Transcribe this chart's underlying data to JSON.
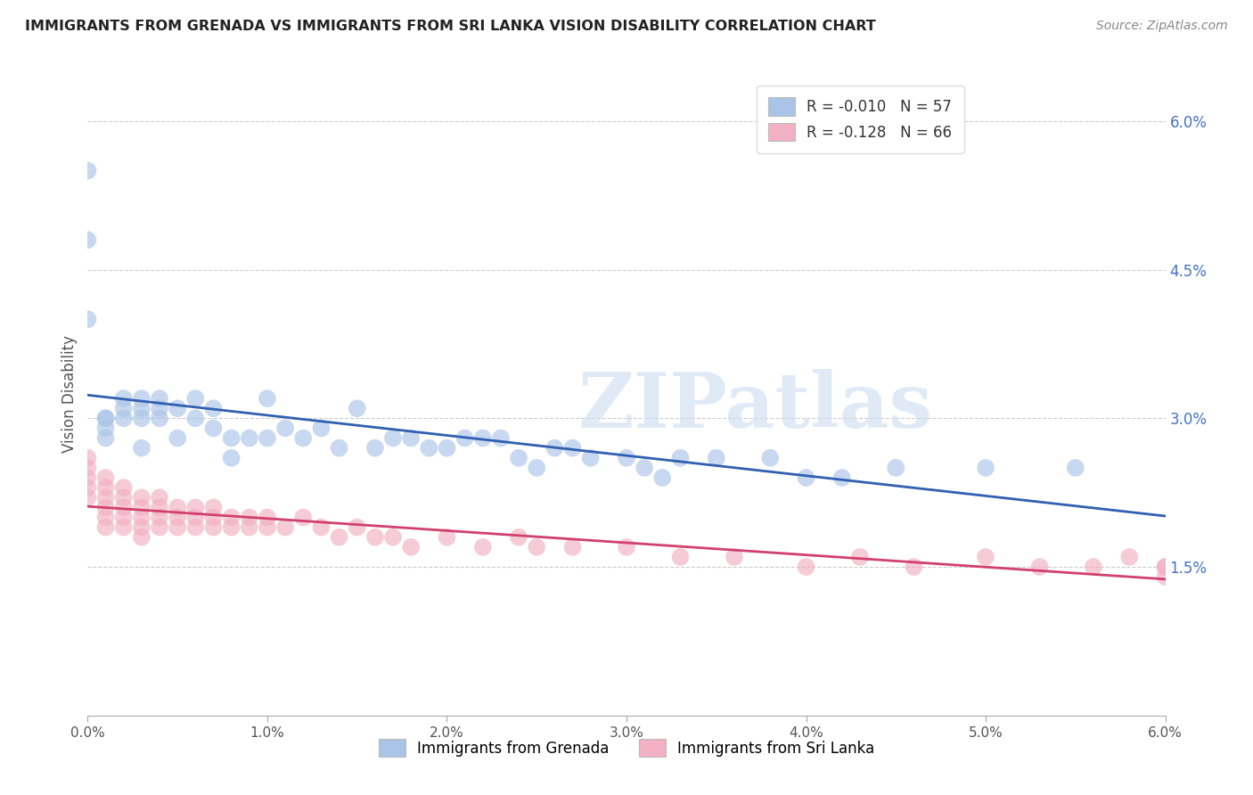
{
  "title": "IMMIGRANTS FROM GRENADA VS IMMIGRANTS FROM SRI LANKA VISION DISABILITY CORRELATION CHART",
  "source": "Source: ZipAtlas.com",
  "ylabel": "Vision Disability",
  "xlim": [
    0.0,
    0.06
  ],
  "ylim": [
    0.0,
    0.065
  ],
  "xtick_vals": [
    0.0,
    0.01,
    0.02,
    0.03,
    0.04,
    0.05,
    0.06
  ],
  "xtick_labels": [
    "0.0%",
    "1.0%",
    "2.0%",
    "3.0%",
    "4.0%",
    "5.0%",
    "6.0%"
  ],
  "ytick_vals": [
    0.015,
    0.03,
    0.045,
    0.06
  ],
  "ytick_labels": [
    "1.5%",
    "3.0%",
    "4.5%",
    "6.0%"
  ],
  "legend1_label": "R = -0.010   N = 57",
  "legend2_label": "R = -0.128   N = 66",
  "legend_x_label": "Immigrants from Grenada",
  "legend_y_label": "Immigrants from Sri Lanka",
  "blue_color": "#aac4e8",
  "pink_color": "#f2b0c4",
  "blue_line_color": "#3060b0",
  "pink_line_color": "#d04070",
  "watermark": "ZIPatlas",
  "blue_R": -0.01,
  "pink_R": -0.128,
  "grenada_x": [
    0.0,
    0.0,
    0.0,
    0.001,
    0.001,
    0.001,
    0.001,
    0.002,
    0.002,
    0.002,
    0.003,
    0.003,
    0.003,
    0.003,
    0.004,
    0.004,
    0.004,
    0.005,
    0.005,
    0.006,
    0.006,
    0.007,
    0.007,
    0.008,
    0.008,
    0.009,
    0.01,
    0.01,
    0.011,
    0.012,
    0.013,
    0.014,
    0.015,
    0.016,
    0.017,
    0.018,
    0.019,
    0.02,
    0.021,
    0.022,
    0.023,
    0.024,
    0.025,
    0.026,
    0.027,
    0.028,
    0.03,
    0.031,
    0.032,
    0.033,
    0.035,
    0.038,
    0.04,
    0.042,
    0.045,
    0.05,
    0.055
  ],
  "grenada_y": [
    0.055,
    0.048,
    0.04,
    0.03,
    0.03,
    0.029,
    0.028,
    0.032,
    0.031,
    0.03,
    0.032,
    0.031,
    0.03,
    0.027,
    0.032,
    0.031,
    0.03,
    0.031,
    0.028,
    0.032,
    0.03,
    0.031,
    0.029,
    0.028,
    0.026,
    0.028,
    0.032,
    0.028,
    0.029,
    0.028,
    0.029,
    0.027,
    0.031,
    0.027,
    0.028,
    0.028,
    0.027,
    0.027,
    0.028,
    0.028,
    0.028,
    0.026,
    0.025,
    0.027,
    0.027,
    0.026,
    0.026,
    0.025,
    0.024,
    0.026,
    0.026,
    0.026,
    0.024,
    0.024,
    0.025,
    0.025,
    0.025
  ],
  "srilanka_x": [
    0.0,
    0.0,
    0.0,
    0.0,
    0.0,
    0.001,
    0.001,
    0.001,
    0.001,
    0.001,
    0.001,
    0.002,
    0.002,
    0.002,
    0.002,
    0.002,
    0.003,
    0.003,
    0.003,
    0.003,
    0.003,
    0.004,
    0.004,
    0.004,
    0.004,
    0.005,
    0.005,
    0.005,
    0.006,
    0.006,
    0.006,
    0.007,
    0.007,
    0.007,
    0.008,
    0.008,
    0.009,
    0.009,
    0.01,
    0.01,
    0.011,
    0.012,
    0.013,
    0.014,
    0.015,
    0.016,
    0.017,
    0.018,
    0.02,
    0.022,
    0.024,
    0.025,
    0.027,
    0.03,
    0.033,
    0.036,
    0.04,
    0.043,
    0.046,
    0.05,
    0.053,
    0.056,
    0.058,
    0.06,
    0.06,
    0.06
  ],
  "srilanka_y": [
    0.026,
    0.025,
    0.024,
    0.023,
    0.022,
    0.024,
    0.023,
    0.022,
    0.021,
    0.02,
    0.019,
    0.023,
    0.022,
    0.021,
    0.02,
    0.019,
    0.022,
    0.021,
    0.02,
    0.019,
    0.018,
    0.022,
    0.021,
    0.02,
    0.019,
    0.021,
    0.02,
    0.019,
    0.021,
    0.02,
    0.019,
    0.021,
    0.02,
    0.019,
    0.02,
    0.019,
    0.02,
    0.019,
    0.02,
    0.019,
    0.019,
    0.02,
    0.019,
    0.018,
    0.019,
    0.018,
    0.018,
    0.017,
    0.018,
    0.017,
    0.018,
    0.017,
    0.017,
    0.017,
    0.016,
    0.016,
    0.015,
    0.016,
    0.015,
    0.016,
    0.015,
    0.015,
    0.016,
    0.015,
    0.015,
    0.014
  ]
}
